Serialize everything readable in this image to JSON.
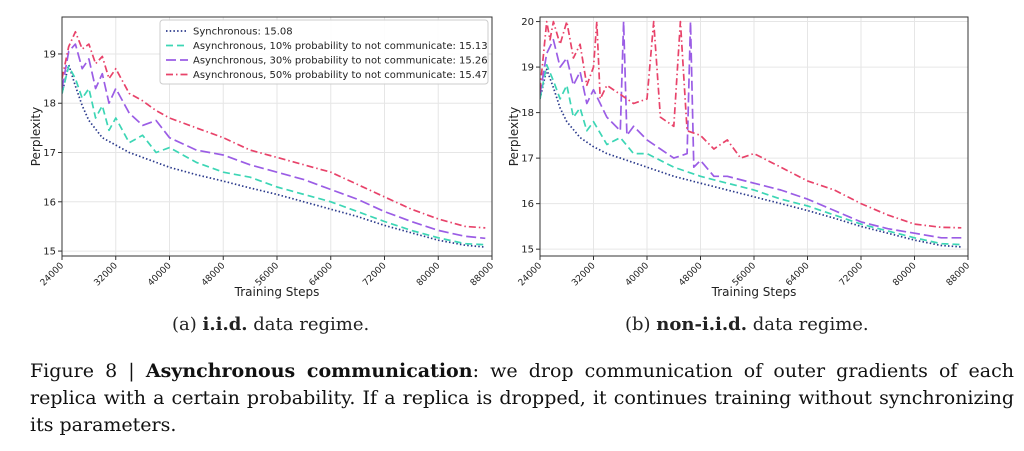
{
  "chart_data": [
    {
      "type": "line",
      "xlabel": "Training Steps",
      "ylabel": "Perplexity",
      "xlim": [
        24000,
        88000
      ],
      "ylim": [
        14.9,
        19.75
      ],
      "xticks": [
        "24000",
        "32000",
        "40000",
        "48000",
        "56000",
        "64000",
        "72000",
        "80000",
        "88000"
      ],
      "yticks": [
        "15",
        "16",
        "17",
        "18",
        "19"
      ],
      "grid": true,
      "legend_position": "top-right",
      "series": [
        {
          "name": "Synchronous: 15.08",
          "color": "#2b3a8c",
          "dash": "dotted",
          "x": [
            24000,
            25000,
            26000,
            27000,
            28000,
            30000,
            32000,
            34000,
            36000,
            40000,
            44000,
            48000,
            52000,
            56000,
            60000,
            64000,
            68000,
            72000,
            76000,
            80000,
            84000,
            87000
          ],
          "y": [
            18.2,
            18.78,
            18.35,
            17.95,
            17.65,
            17.3,
            17.15,
            17.0,
            16.9,
            16.7,
            16.55,
            16.42,
            16.28,
            16.15,
            16.0,
            15.85,
            15.7,
            15.52,
            15.37,
            15.22,
            15.12,
            15.08
          ]
        },
        {
          "name": "Asynchronous, 10% probability to not communicate: 15.13",
          "color": "#3dd6b5",
          "dash": "dashed",
          "x": [
            24000,
            25000,
            26000,
            27000,
            28000,
            29000,
            30000,
            31000,
            32000,
            34000,
            36000,
            38000,
            40000,
            44000,
            48000,
            52000,
            56000,
            60000,
            64000,
            68000,
            72000,
            76000,
            80000,
            84000,
            87000
          ],
          "y": [
            18.2,
            18.75,
            18.5,
            18.1,
            18.3,
            17.7,
            17.95,
            17.45,
            17.7,
            17.2,
            17.35,
            17.0,
            17.1,
            16.8,
            16.6,
            16.5,
            16.3,
            16.15,
            16.0,
            15.8,
            15.6,
            15.42,
            15.27,
            15.15,
            15.13
          ]
        },
        {
          "name": "Asynchronous, 30% probability to not communicate: 15.26",
          "color": "#9b5de5",
          "dash": "longdash",
          "x": [
            24000,
            25000,
            26000,
            27000,
            28000,
            29000,
            30000,
            31000,
            32000,
            34000,
            36000,
            38000,
            40000,
            44000,
            48000,
            52000,
            56000,
            60000,
            64000,
            68000,
            72000,
            76000,
            80000,
            84000,
            87000
          ],
          "y": [
            18.3,
            19.05,
            19.2,
            18.7,
            18.9,
            18.3,
            18.6,
            18.0,
            18.3,
            17.8,
            17.55,
            17.65,
            17.3,
            17.05,
            16.95,
            16.75,
            16.6,
            16.45,
            16.25,
            16.05,
            15.8,
            15.6,
            15.42,
            15.3,
            15.26
          ]
        },
        {
          "name": "Asynchronous, 50% probability to not communicate: 15.47",
          "color": "#e8436a",
          "dash": "dashdot",
          "x": [
            24000,
            25000,
            26000,
            27000,
            28000,
            29000,
            30000,
            31000,
            32000,
            34000,
            36000,
            38000,
            40000,
            44000,
            48000,
            52000,
            56000,
            60000,
            64000,
            68000,
            72000,
            76000,
            80000,
            84000,
            87000
          ],
          "y": [
            18.5,
            19.15,
            19.45,
            19.1,
            19.2,
            18.8,
            18.95,
            18.5,
            18.7,
            18.2,
            18.05,
            17.85,
            17.7,
            17.5,
            17.3,
            17.05,
            16.9,
            16.75,
            16.6,
            16.35,
            16.1,
            15.85,
            15.65,
            15.5,
            15.47
          ]
        }
      ]
    },
    {
      "type": "line",
      "xlabel": "Training Steps",
      "ylabel": "Perplexity",
      "xlim": [
        24000,
        88000
      ],
      "ylim": [
        14.85,
        20.1
      ],
      "xticks": [
        "24000",
        "32000",
        "40000",
        "48000",
        "56000",
        "64000",
        "72000",
        "80000",
        "88000"
      ],
      "yticks": [
        "15",
        "16",
        "17",
        "18",
        "19",
        "20"
      ],
      "grid": true,
      "series": [
        {
          "name": "Synchronous",
          "color": "#2b3a8c",
          "dash": "dotted",
          "x": [
            24000,
            25000,
            26000,
            27000,
            28000,
            30000,
            32000,
            34000,
            36000,
            40000,
            44000,
            48000,
            52000,
            56000,
            60000,
            64000,
            68000,
            72000,
            76000,
            80000,
            84000,
            87000
          ],
          "y": [
            18.3,
            18.95,
            18.55,
            18.1,
            17.8,
            17.45,
            17.25,
            17.1,
            17.0,
            16.8,
            16.6,
            16.45,
            16.3,
            16.15,
            16.0,
            15.85,
            15.68,
            15.5,
            15.35,
            15.2,
            15.08,
            15.05
          ]
        },
        {
          "name": "Asynchronous, 10%",
          "color": "#3dd6b5",
          "dash": "dashed",
          "x": [
            24000,
            25000,
            26000,
            27000,
            28000,
            29000,
            30000,
            31000,
            32000,
            34000,
            36000,
            38000,
            40000,
            44000,
            48000,
            52000,
            56000,
            60000,
            64000,
            68000,
            72000,
            76000,
            80000,
            84000,
            87000
          ],
          "y": [
            18.3,
            19.05,
            18.7,
            18.3,
            18.6,
            17.9,
            18.1,
            17.6,
            17.8,
            17.3,
            17.45,
            17.1,
            17.1,
            16.8,
            16.6,
            16.45,
            16.3,
            16.1,
            15.95,
            15.75,
            15.55,
            15.4,
            15.25,
            15.12,
            15.1
          ]
        },
        {
          "name": "Asynchronous, 30%",
          "color": "#9b5de5",
          "dash": "longdash",
          "x": [
            24000,
            25000,
            26000,
            27000,
            28000,
            29000,
            30000,
            31000,
            32000,
            34000,
            36000,
            36500,
            37000,
            38000,
            40000,
            42000,
            44000,
            46000,
            46500,
            47000,
            48000,
            50000,
            52000,
            56000,
            60000,
            64000,
            68000,
            72000,
            76000,
            80000,
            84000,
            87000
          ],
          "y": [
            18.4,
            19.3,
            19.6,
            19.0,
            19.2,
            18.6,
            18.9,
            18.2,
            18.5,
            17.9,
            17.6,
            20.0,
            17.5,
            17.7,
            17.4,
            17.2,
            17.0,
            17.1,
            20.0,
            16.8,
            16.95,
            16.6,
            16.6,
            16.45,
            16.3,
            16.1,
            15.85,
            15.6,
            15.45,
            15.35,
            15.25,
            15.25
          ]
        },
        {
          "name": "Asynchronous, 50%",
          "color": "#e8436a",
          "dash": "dashdot",
          "x": [
            24000,
            25000,
            25500,
            26000,
            27000,
            28000,
            29000,
            30000,
            31000,
            32000,
            32500,
            33000,
            34000,
            36000,
            38000,
            40000,
            41000,
            42000,
            44000,
            45000,
            46000,
            48000,
            50000,
            52000,
            54000,
            56000,
            60000,
            64000,
            68000,
            72000,
            76000,
            80000,
            84000,
            87000
          ],
          "y": [
            18.5,
            20.0,
            19.6,
            20.0,
            19.5,
            20.0,
            19.2,
            19.5,
            18.6,
            19.0,
            20.0,
            18.3,
            18.6,
            18.4,
            18.2,
            18.3,
            20.0,
            17.9,
            17.7,
            20.0,
            17.6,
            17.5,
            17.2,
            17.4,
            17.0,
            17.1,
            16.8,
            16.5,
            16.3,
            16.0,
            15.75,
            15.55,
            15.48,
            15.47
          ]
        }
      ]
    }
  ],
  "subcaptions": {
    "a": {
      "prefix": "(a) ",
      "bold": "i.i.d.",
      "suffix": " data regime."
    },
    "b": {
      "prefix": "(b) ",
      "bold": "non-i.i.d.",
      "suffix": " data regime."
    }
  },
  "figure_caption": {
    "label": "Figure 8 | ",
    "bold": "Asynchronous communication",
    "text": ": we drop communication of outer gradients of each replica with a certain probability. If a replica is dropped, it continues training without synchronizing its parameters."
  }
}
